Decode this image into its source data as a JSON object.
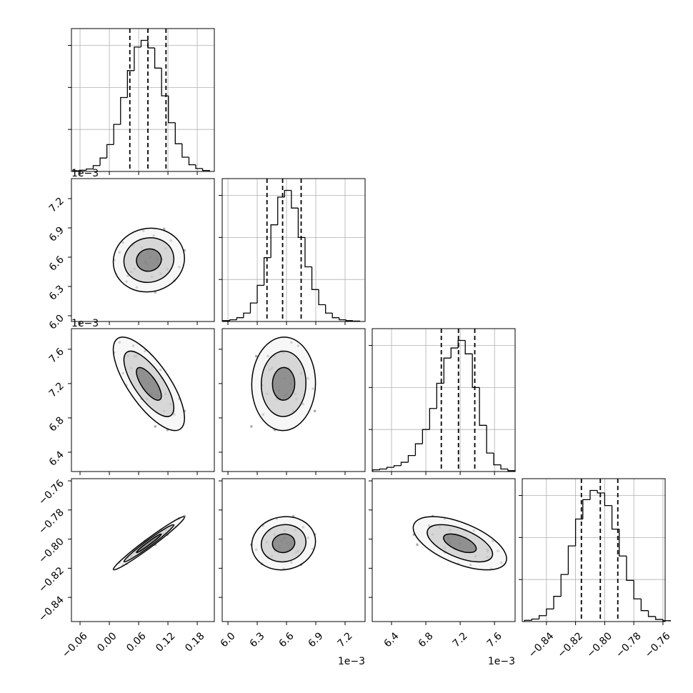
{
  "chart_data": {
    "type": "corner",
    "grid": true,
    "line_color": "#000000",
    "point_color": "#777777",
    "grid_color": "#b0b0b0",
    "params": [
      {
        "lim": [
          -0.0776,
          0.215
        ],
        "ticks": [
          {
            "value": -0.06,
            "label": "−0.06"
          },
          {
            "value": 0,
            "label": "0.00"
          },
          0.06,
          0.12,
          0.18
        ]
      },
      {
        "lim": [
          5.941,
          7.405
        ],
        "ticks": [
          {
            "value": 6,
            "label": "6.0"
          },
          6.3,
          6.6,
          6.9,
          7.2
        ],
        "offset": "1e−3"
      },
      {
        "lim": [
          6.175,
          7.84
        ],
        "ticks": [
          6.4,
          6.8,
          7.2,
          7.6
        ],
        "offset": "1e−3"
      },
      {
        "lim": [
          -0.8566,
          -0.7585
        ],
        "ticks": [
          {
            "value": -0.84,
            "label": "−0.84"
          },
          {
            "value": -0.82,
            "label": "−0.82"
          },
          {
            "value": -0.8,
            "label": "−0.80"
          },
          {
            "value": -0.78,
            "label": "−0.78"
          },
          {
            "value": -0.76,
            "label": "−0.76"
          }
        ]
      }
    ],
    "hist_ylim": [
      0,
      1700
    ],
    "hist_yticks": [
      500,
      1000,
      1500
    ],
    "histograms": [
      {
        "bins": [
          -0.075,
          -0.061,
          -0.047,
          -0.033,
          -0.019,
          -0.005,
          0.009,
          0.023,
          0.037,
          0.051,
          0.065,
          0.079,
          0.093,
          0.107,
          0.121,
          0.135,
          0.149,
          0.163,
          0.177,
          0.191,
          0.205
        ],
        "counts": [
          8,
          15,
          30,
          70,
          160,
          320,
          560,
          880,
          1200,
          1480,
          1560,
          1470,
          1230,
          900,
          580,
          330,
          170,
          80,
          35,
          12
        ],
        "quantiles": [
          0.042,
          0.079,
          0.116
        ]
      },
      {
        "bins": [
          5.95,
          6.02,
          6.09,
          6.16,
          6.23,
          6.3,
          6.37,
          6.44,
          6.51,
          6.58,
          6.65,
          6.72,
          6.79,
          6.86,
          6.93,
          7.0,
          7.07,
          7.14,
          7.21,
          7.28,
          7.35
        ],
        "counts": [
          10,
          20,
          45,
          100,
          220,
          430,
          760,
          1150,
          1480,
          1560,
          1350,
          1000,
          650,
          380,
          200,
          100,
          45,
          20,
          10,
          5
        ],
        "quantiles": [
          6.4,
          6.56,
          6.75
        ]
      },
      {
        "bins": [
          6.18,
          6.263,
          6.346,
          6.429,
          6.512,
          6.595,
          6.678,
          6.761,
          6.844,
          6.927,
          7.01,
          7.093,
          7.176,
          7.259,
          7.342,
          7.425,
          7.508,
          7.591,
          7.674,
          7.757,
          7.84
        ],
        "counts": [
          20,
          30,
          50,
          70,
          110,
          190,
          330,
          500,
          750,
          1050,
          1350,
          1470,
          1560,
          1400,
          1000,
          550,
          220,
          80,
          30,
          10
        ],
        "quantiles": [
          6.98,
          7.18,
          7.37
        ]
      },
      {
        "bins": [
          -0.855,
          -0.85,
          -0.845,
          -0.84,
          -0.835,
          -0.83,
          -0.825,
          -0.82,
          -0.815,
          -0.81,
          -0.805,
          -0.8,
          -0.795,
          -0.79,
          -0.785,
          -0.78,
          -0.775,
          -0.77,
          -0.765,
          -0.76,
          -0.755
        ],
        "counts": [
          15,
          30,
          70,
          150,
          300,
          560,
          900,
          1220,
          1450,
          1560,
          1530,
          1380,
          1100,
          780,
          490,
          270,
          130,
          60,
          25,
          10
        ],
        "quantiles": [
          -0.816,
          -0.803,
          -0.791
        ]
      }
    ],
    "samples": [
      [
        0.084,
        6.6,
        7.08,
        -0.8032
      ],
      [
        0.038,
        6.41,
        7.52,
        -0.8124
      ],
      [
        0.108,
        6.58,
        7.26,
        -0.794
      ],
      [
        0.133,
        6.36,
        6.84,
        -0.7908
      ],
      [
        0.066,
        6.7,
        7.02,
        -0.809
      ],
      [
        0.091,
        6.82,
        7.26,
        -0.7992
      ],
      [
        0.01,
        6.57,
        7.56,
        -0.8204
      ],
      [
        0.119,
        6.48,
        6.66,
        -0.7969
      ],
      [
        0.056,
        6.29,
        7.52,
        -0.8072
      ],
      [
        0.08,
        6.64,
        7.2,
        -0.803
      ],
      [
        0.154,
        6.67,
        6.88,
        -0.7842
      ],
      [
        0.028,
        6.75,
        7.32,
        -0.8176
      ],
      [
        0.101,
        6.52,
        7.12,
        -0.7975
      ],
      [
        0.073,
        6.55,
        7.58,
        -0.8013
      ],
      [
        0.112,
        6.89,
        6.88,
        -0.7968
      ],
      [
        0.045,
        6.45,
        7.38,
        -0.8117
      ],
      [
        0.094,
        6.24,
        6.7,
        -0.8038
      ],
      [
        0.059,
        6.62,
        7.38,
        -0.8075
      ],
      [
        0.143,
        6.5,
        7.02,
        -0.7859
      ],
      [
        0.049,
        6.72,
        7.64,
        -0.8081
      ],
      [
        0.087,
        6.4,
        7.08,
        -0.8021
      ],
      [
        0.021,
        6.65,
        7.68,
        -0.8161
      ],
      [
        0.126,
        6.77,
        6.96,
        -0.7918
      ],
      [
        0.077,
        6.53,
        7.02,
        -0.8059
      ],
      [
        0.105,
        6.43,
        7.36,
        -0.7941
      ],
      [
        0.07,
        6.87,
        7.14,
        -0.8068
      ],
      [
        0.115,
        6.69,
        7.08,
        -0.7937
      ],
      [
        0.035,
        6.35,
        7.18,
        -0.8169
      ],
      [
        0.098,
        6.58,
        7.06,
        -0.7992
      ],
      [
        0.052,
        6.48,
        7.52,
        -0.8082
      ]
    ]
  }
}
